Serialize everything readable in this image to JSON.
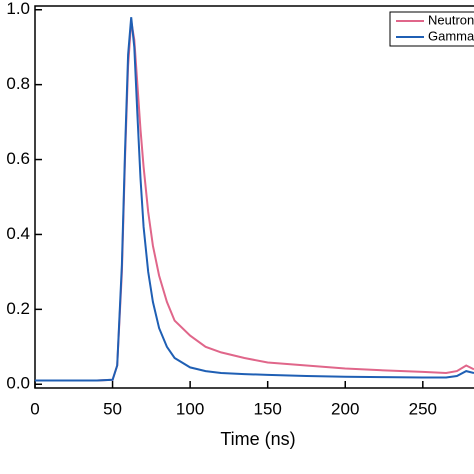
{
  "chart_data": {
    "type": "line",
    "x_label": "Time (ns)",
    "x": [
      0,
      40,
      50,
      53,
      56,
      58,
      60,
      62,
      64,
      66,
      68,
      70,
      73,
      76,
      80,
      85,
      90,
      100,
      110,
      120,
      135,
      150,
      175,
      200,
      225,
      250,
      265,
      272,
      278,
      283
    ],
    "series": [
      {
        "name": "Neutron",
        "color": "#e0668a",
        "values": [
          0.01,
          0.01,
          0.012,
          0.05,
          0.3,
          0.6,
          0.85,
          0.97,
          0.92,
          0.8,
          0.68,
          0.58,
          0.46,
          0.37,
          0.29,
          0.22,
          0.17,
          0.13,
          0.1,
          0.085,
          0.07,
          0.058,
          0.05,
          0.042,
          0.037,
          0.033,
          0.03,
          0.035,
          0.05,
          0.04
        ]
      },
      {
        "name": "Gamma",
        "color": "#1f5fb4",
        "values": [
          0.01,
          0.01,
          0.012,
          0.05,
          0.32,
          0.62,
          0.88,
          0.98,
          0.9,
          0.72,
          0.55,
          0.42,
          0.3,
          0.22,
          0.15,
          0.1,
          0.07,
          0.045,
          0.035,
          0.03,
          0.027,
          0.025,
          0.022,
          0.02,
          0.019,
          0.018,
          0.018,
          0.022,
          0.035,
          0.03
        ]
      }
    ],
    "xlim": [
      0,
      283
    ],
    "ylim": [
      -0.01,
      1.01
    ],
    "xticks": [
      0,
      50,
      100,
      150,
      200,
      250
    ],
    "yticks": [
      {
        "value": 0,
        "label": "0.0"
      },
      {
        "value": 0.2,
        "label": "0.2"
      },
      {
        "value": 0.4,
        "label": "0.4"
      },
      {
        "value": 0.6,
        "label": "0.6"
      },
      {
        "value": 0.8,
        "label": "0.8"
      },
      {
        "value": 1.0,
        "label": "1.0"
      }
    ],
    "legend": "upper right"
  }
}
